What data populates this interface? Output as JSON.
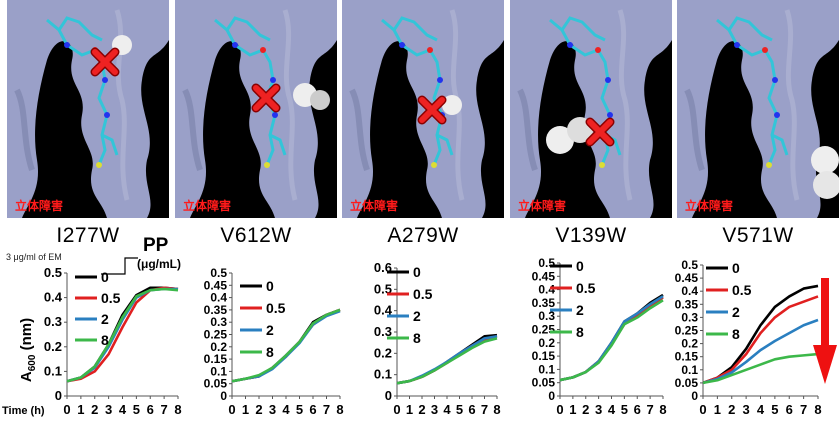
{
  "header": {
    "steric_label": "立体障害",
    "em_note": "3 μg/ml of EM",
    "pp_label": "PP",
    "pp_unit": "(μg/mL)",
    "y_axis_label": "A600 (nm)",
    "time_label": "Time (h)"
  },
  "colors": {
    "surface": "#9aa0c8",
    "background": "#000000",
    "ligand": "#33c5d8",
    "cross": "#ee2222",
    "arrow": "#ee1111"
  },
  "panels": [
    {
      "mutation": "I277W",
      "steric": true
    },
    {
      "mutation": "V612W",
      "steric": true
    },
    {
      "mutation": "A279W",
      "steric": true
    },
    {
      "mutation": "V139W",
      "steric": true
    },
    {
      "mutation": "V571W",
      "steric": true
    }
  ],
  "chart_data": [
    {
      "type": "line",
      "mutation": "I277W",
      "x": [
        0,
        1,
        2,
        3,
        4,
        5,
        6,
        7,
        8
      ],
      "ylim": [
        0,
        0.5
      ],
      "yticks": [
        "0",
        "0.1",
        "0.2",
        "0.3",
        "0.4",
        "0.5"
      ],
      "xticks": [
        "0",
        "1",
        "2",
        "3",
        "4",
        "5",
        "6",
        "7",
        "8"
      ],
      "series": [
        {
          "name": "0",
          "color": "#000000",
          "values": [
            0.06,
            0.075,
            0.12,
            0.21,
            0.33,
            0.41,
            0.44,
            0.44,
            0.435
          ]
        },
        {
          "name": "0.5",
          "color": "#e02020",
          "values": [
            0.06,
            0.07,
            0.1,
            0.17,
            0.28,
            0.38,
            0.43,
            0.44,
            0.435
          ]
        },
        {
          "name": "2",
          "color": "#2a7fc0",
          "values": [
            0.06,
            0.075,
            0.115,
            0.2,
            0.31,
            0.4,
            0.43,
            0.435,
            0.435
          ]
        },
        {
          "name": "8",
          "color": "#3cb84a",
          "values": [
            0.06,
            0.075,
            0.12,
            0.21,
            0.32,
            0.405,
            0.43,
            0.435,
            0.43
          ]
        }
      ]
    },
    {
      "type": "line",
      "mutation": "V612W",
      "x": [
        0,
        1,
        2,
        3,
        4,
        5,
        6,
        7,
        8
      ],
      "ylim": [
        0,
        0.5
      ],
      "yticks": [
        "0",
        "0.05",
        "0.1",
        "0.15",
        "0.2",
        "0.25",
        "0.3",
        "0.35",
        "0.4",
        "0.45",
        "0.5"
      ],
      "xticks": [
        "0",
        "1",
        "2",
        "3",
        "4",
        "5",
        "6",
        "7",
        "8"
      ],
      "series": [
        {
          "name": "0",
          "color": "#000000",
          "values": [
            0.06,
            0.07,
            0.08,
            0.115,
            0.165,
            0.22,
            0.3,
            0.33,
            0.35
          ]
        },
        {
          "name": "0.5",
          "color": "#e02020",
          "values": [
            0.06,
            0.07,
            0.08,
            0.115,
            0.16,
            0.22,
            0.29,
            0.33,
            0.35
          ]
        },
        {
          "name": "2",
          "color": "#2a7fc0",
          "values": [
            0.06,
            0.07,
            0.08,
            0.11,
            0.16,
            0.215,
            0.29,
            0.325,
            0.345
          ]
        },
        {
          "name": "8",
          "color": "#3cb84a",
          "values": [
            0.06,
            0.07,
            0.085,
            0.115,
            0.165,
            0.22,
            0.295,
            0.33,
            0.35
          ]
        }
      ]
    },
    {
      "type": "line",
      "mutation": "A279W",
      "x": [
        0,
        1,
        2,
        3,
        4,
        5,
        6,
        7,
        8
      ],
      "ylim": [
        0,
        0.6
      ],
      "yticks": [
        "0",
        "0.1",
        "0.2",
        "0.3",
        "0.4",
        "0.5",
        "0.6"
      ],
      "xticks": [
        "0",
        "1",
        "2",
        "3",
        "4",
        "5",
        "6",
        "7",
        "8"
      ],
      "series": [
        {
          "name": "0",
          "color": "#000000",
          "values": [
            0.06,
            0.07,
            0.09,
            0.12,
            0.16,
            0.2,
            0.24,
            0.28,
            0.285
          ]
        },
        {
          "name": "0.5",
          "color": "#e02020",
          "values": [
            0.06,
            0.07,
            0.09,
            0.12,
            0.155,
            0.195,
            0.235,
            0.265,
            0.28
          ]
        },
        {
          "name": "2",
          "color": "#2a7fc0",
          "values": [
            0.06,
            0.07,
            0.095,
            0.125,
            0.16,
            0.2,
            0.235,
            0.27,
            0.28
          ]
        },
        {
          "name": "8",
          "color": "#3cb84a",
          "values": [
            0.06,
            0.07,
            0.09,
            0.12,
            0.155,
            0.19,
            0.225,
            0.255,
            0.27
          ]
        }
      ]
    },
    {
      "type": "line",
      "mutation": "V139W",
      "x": [
        0,
        1,
        2,
        3,
        4,
        5,
        6,
        7,
        8
      ],
      "ylim": [
        0,
        0.5
      ],
      "yticks": [
        "0",
        "0.05",
        "0.1",
        "0.15",
        "0.2",
        "0.25",
        "0.3",
        "0.35",
        "0.4",
        "0.45",
        "0.5"
      ],
      "xticks": [
        "0",
        "1",
        "2",
        "3",
        "4",
        "5",
        "6",
        "7",
        "8"
      ],
      "series": [
        {
          "name": "0",
          "color": "#000000",
          "values": [
            0.06,
            0.07,
            0.09,
            0.13,
            0.2,
            0.28,
            0.31,
            0.35,
            0.38
          ]
        },
        {
          "name": "0.5",
          "color": "#e02020",
          "values": [
            0.06,
            0.07,
            0.09,
            0.13,
            0.195,
            0.27,
            0.3,
            0.34,
            0.37
          ]
        },
        {
          "name": "2",
          "color": "#2a7fc0",
          "values": [
            0.06,
            0.07,
            0.09,
            0.13,
            0.2,
            0.28,
            0.31,
            0.345,
            0.375
          ]
        },
        {
          "name": "8",
          "color": "#3cb84a",
          "values": [
            0.06,
            0.07,
            0.09,
            0.125,
            0.19,
            0.27,
            0.295,
            0.33,
            0.36
          ]
        }
      ]
    },
    {
      "type": "line",
      "mutation": "V571W",
      "x": [
        0,
        1,
        2,
        3,
        4,
        5,
        6,
        7,
        8
      ],
      "ylim": [
        0,
        0.5
      ],
      "yticks": [
        "0",
        "0.05",
        "0.1",
        "0.15",
        "0.2",
        "0.25",
        "0.3",
        "0.35",
        "0.4",
        "0.45",
        "0.5"
      ],
      "xticks": [
        "0",
        "1",
        "2",
        "3",
        "4",
        "5",
        "6",
        "7",
        "8"
      ],
      "series": [
        {
          "name": "0",
          "color": "#000000",
          "values": [
            0.05,
            0.07,
            0.11,
            0.18,
            0.27,
            0.34,
            0.38,
            0.41,
            0.42
          ]
        },
        {
          "name": "0.5",
          "color": "#e02020",
          "values": [
            0.05,
            0.07,
            0.1,
            0.16,
            0.24,
            0.3,
            0.34,
            0.36,
            0.38
          ]
        },
        {
          "name": "2",
          "color": "#2a7fc0",
          "values": [
            0.05,
            0.065,
            0.09,
            0.13,
            0.175,
            0.21,
            0.24,
            0.27,
            0.29
          ]
        },
        {
          "name": "8",
          "color": "#3cb84a",
          "values": [
            0.05,
            0.06,
            0.08,
            0.1,
            0.12,
            0.14,
            0.15,
            0.155,
            0.16
          ]
        }
      ],
      "decrease_arrow": true
    }
  ]
}
